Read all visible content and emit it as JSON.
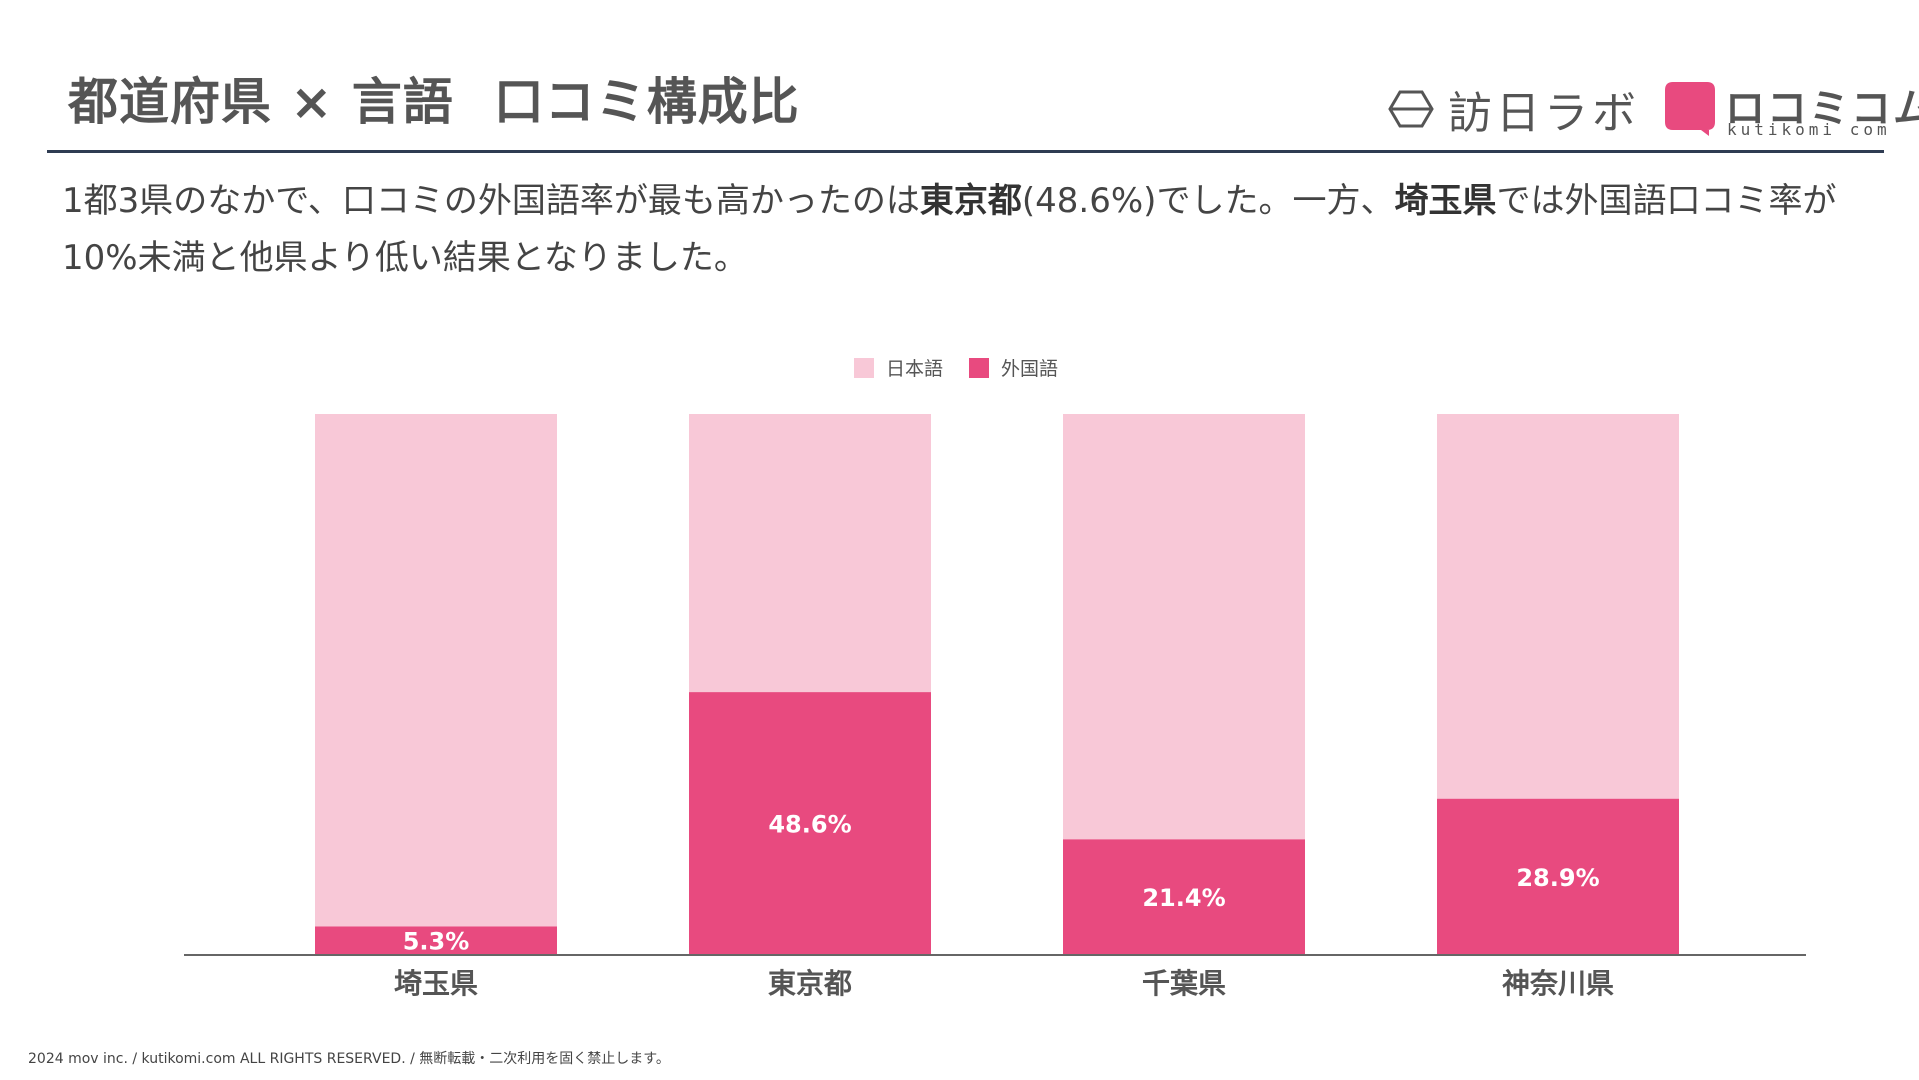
{
  "header": {
    "title_part1": "都道府県 × 言語",
    "title_part2": "口コミ構成比"
  },
  "logos": {
    "houn_lab": "訪日ラボ",
    "kutikomi": "ロコミコム",
    "kutikomi_sub": "kutikomi com"
  },
  "description": {
    "s1": "1都3県のなかで、口コミの外国語率が最も高かったのは",
    "b1": "東京都",
    "s2": "(48.6%)でした。一方、",
    "b2": "埼玉県",
    "s3": "では外国語口コミ率が10%未満と他県より低い結果となりました。"
  },
  "colors": {
    "japanese": "#f8c8d7",
    "foreign": "#e84a7f",
    "axis": "#666666"
  },
  "chart_data": {
    "type": "bar",
    "stacked": true,
    "normalized_percent": true,
    "categories": [
      "埼玉県",
      "東京都",
      "千葉県",
      "神奈川県"
    ],
    "series": [
      {
        "name": "日本語",
        "values": [
          94.7,
          51.4,
          78.6,
          71.1
        ]
      },
      {
        "name": "外国語",
        "values": [
          5.3,
          48.6,
          21.4,
          28.9
        ]
      }
    ],
    "data_labels": [
      "5.3%",
      "48.6%",
      "21.4%",
      "28.9%"
    ],
    "ylim": [
      0,
      100
    ],
    "legend_position": "top-center",
    "grid": false
  },
  "footer": {
    "copyright": "2024 mov inc. / kutikomi.com ALL RIGHTS RESERVED. / 無断転載・二次利用を固く禁止します。"
  }
}
